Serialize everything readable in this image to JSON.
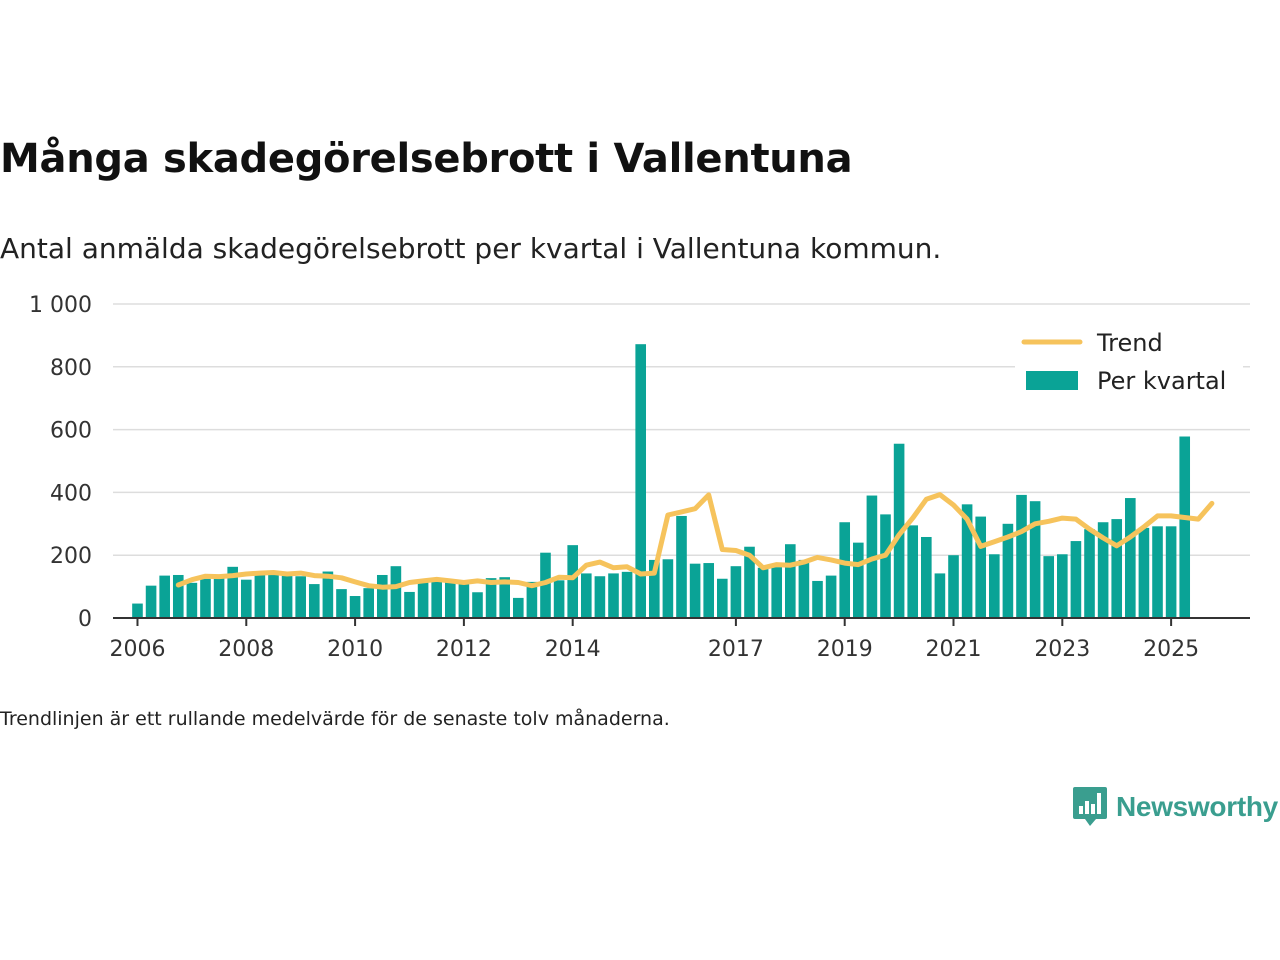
{
  "title": "Många skadegörelsebrott i Vallentuna",
  "subtitle": "Antal anmälda skadegörelsebrott per kvartal i Vallentuna kommun.",
  "footnote": "Trendlinjen är ett rullande medelvärde för de senaste tolv månaderna.",
  "brand": {
    "name": "Newsworthy",
    "icon": "newsworthy-logo-icon"
  },
  "colors": {
    "bars": "#0aa396",
    "trend": "#f6c35c",
    "grid": "#dddddd",
    "axis": "#333333"
  },
  "chart_data": {
    "type": "bar",
    "ylim": [
      0,
      1000
    ],
    "yticks": [
      0,
      200,
      400,
      600,
      800,
      1000
    ],
    "ytick_labels": [
      "0",
      "200",
      "400",
      "600",
      "800",
      "1 000"
    ],
    "xlim": [
      2005.55,
      2026.45
    ],
    "xticks": [
      2006,
      2008,
      2010,
      2012,
      2014,
      2017,
      2019,
      2021,
      2023,
      2025
    ],
    "xtick_labels": [
      "2006",
      "2008",
      "2010",
      "2012",
      "2014",
      "2017",
      "2019",
      "2021",
      "2023",
      "2025"
    ],
    "grid": true,
    "legend_position": "top-right",
    "legend": [
      {
        "name": "Trend",
        "kind": "line"
      },
      {
        "name": "Per kvartal",
        "kind": "bar"
      }
    ],
    "bar_series": {
      "name": "Per kvartal",
      "start": 2006,
      "step": 0.25,
      "values": [
        46,
        103,
        135,
        137,
        112,
        125,
        128,
        163,
        122,
        148,
        150,
        135,
        133,
        108,
        148,
        92,
        70,
        95,
        137,
        165,
        83,
        113,
        118,
        123,
        120,
        82,
        127,
        130,
        64,
        115,
        208,
        120,
        232,
        142,
        133,
        142,
        147,
        872,
        185,
        187,
        325,
        173,
        175,
        125,
        165,
        227,
        160,
        162,
        235,
        185,
        118,
        135,
        305,
        240,
        390,
        330,
        555,
        295,
        258,
        142,
        200,
        362,
        323,
        203,
        300,
        392,
        372,
        197,
        203,
        245,
        283,
        305,
        315,
        382,
        287,
        292,
        292,
        578
      ]
    },
    "trend_series": {
      "name": "Trend",
      "points": [
        [
          2006.75,
          105
        ],
        [
          2007.0,
          122
        ],
        [
          2007.25,
          133
        ],
        [
          2007.5,
          132
        ],
        [
          2007.75,
          135
        ],
        [
          2008.0,
          140
        ],
        [
          2008.25,
          143
        ],
        [
          2008.5,
          145
        ],
        [
          2008.75,
          140
        ],
        [
          2009.0,
          143
        ],
        [
          2009.25,
          135
        ],
        [
          2009.5,
          133
        ],
        [
          2009.75,
          128
        ],
        [
          2010.0,
          115
        ],
        [
          2010.25,
          103
        ],
        [
          2010.5,
          98
        ],
        [
          2010.75,
          100
        ],
        [
          2011.0,
          113
        ],
        [
          2011.25,
          118
        ],
        [
          2011.5,
          123
        ],
        [
          2011.75,
          118
        ],
        [
          2012.0,
          113
        ],
        [
          2012.25,
          118
        ],
        [
          2012.5,
          113
        ],
        [
          2012.75,
          115
        ],
        [
          2013.0,
          113
        ],
        [
          2013.25,
          103
        ],
        [
          2013.5,
          113
        ],
        [
          2013.75,
          130
        ],
        [
          2014.0,
          128
        ],
        [
          2014.25,
          168
        ],
        [
          2014.5,
          178
        ],
        [
          2014.75,
          160
        ],
        [
          2015.0,
          163
        ],
        [
          2015.25,
          140
        ],
        [
          2015.5,
          143
        ],
        [
          2015.75,
          328
        ],
        [
          2016.0,
          338
        ],
        [
          2016.25,
          348
        ],
        [
          2016.5,
          392
        ],
        [
          2016.75,
          218
        ],
        [
          2017.0,
          215
        ],
        [
          2017.25,
          200
        ],
        [
          2017.5,
          160
        ],
        [
          2017.75,
          170
        ],
        [
          2018.0,
          168
        ],
        [
          2018.25,
          178
        ],
        [
          2018.5,
          193
        ],
        [
          2018.75,
          185
        ],
        [
          2019.0,
          175
        ],
        [
          2019.25,
          170
        ],
        [
          2019.5,
          188
        ],
        [
          2019.75,
          200
        ],
        [
          2020.0,
          265
        ],
        [
          2020.25,
          318
        ],
        [
          2020.5,
          378
        ],
        [
          2020.75,
          393
        ],
        [
          2021.0,
          360
        ],
        [
          2021.25,
          315
        ],
        [
          2021.5,
          228
        ],
        [
          2021.75,
          243
        ],
        [
          2022.0,
          258
        ],
        [
          2022.25,
          275
        ],
        [
          2022.5,
          300
        ],
        [
          2022.75,
          308
        ],
        [
          2023.0,
          318
        ],
        [
          2023.25,
          315
        ],
        [
          2023.5,
          283
        ],
        [
          2023.75,
          255
        ],
        [
          2024.0,
          230
        ],
        [
          2024.25,
          258
        ],
        [
          2024.5,
          290
        ],
        [
          2024.75,
          325
        ],
        [
          2025.0,
          325
        ],
        [
          2025.25,
          320
        ],
        [
          2025.5,
          315
        ],
        [
          2025.75,
          365
        ]
      ]
    }
  }
}
